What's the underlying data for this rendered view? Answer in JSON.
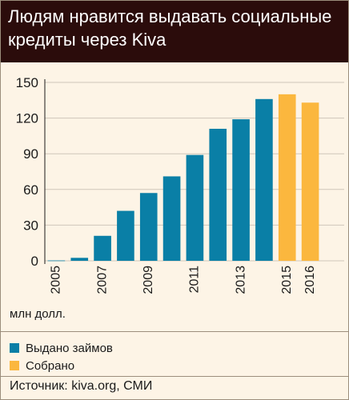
{
  "title": "Людям нравится выдавать социальные кредиты через Kiva",
  "unit_label": "млн долл.",
  "source": "Источник: kiva.org, СМИ",
  "colors": {
    "header_bg": "#2b0c0b",
    "issued": "#0a7fa6",
    "raised": "#fbb73e",
    "background": "#fdf4e6",
    "grid": "#cfc6ba"
  },
  "chart_data": {
    "type": "bar",
    "categories": [
      "2005",
      "2006",
      "2007",
      "2008",
      "2009",
      "2010",
      "2011",
      "2012",
      "2013",
      "2014",
      "2015",
      "2016"
    ],
    "x_tick_labels": [
      "2005",
      "",
      "2007",
      "",
      "2009",
      "",
      "2011",
      "",
      "2013",
      "",
      "2015",
      "2016"
    ],
    "series": [
      {
        "name": "Выдано займов",
        "color": "#0a7fa6",
        "values": [
          0.3,
          2.5,
          21,
          42,
          57,
          71,
          89,
          111,
          119,
          136,
          null,
          null
        ]
      },
      {
        "name": "Собрано",
        "color": "#fbb73e",
        "values": [
          null,
          null,
          null,
          null,
          null,
          null,
          null,
          null,
          null,
          null,
          140,
          133
        ]
      }
    ],
    "ylim": [
      0,
      150
    ],
    "yticks": [
      "0",
      "30",
      "60",
      "90",
      "120",
      "150"
    ],
    "ylabel": "млн долл.",
    "grid": true,
    "legend": "bottom-left"
  }
}
